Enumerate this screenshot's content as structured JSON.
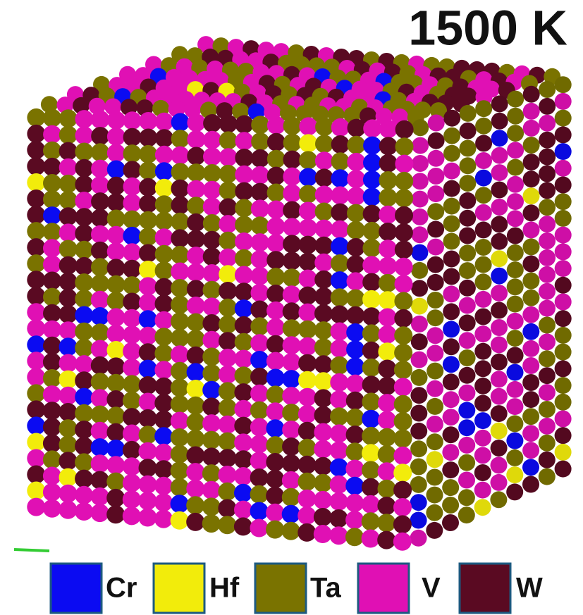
{
  "title": "1500 K",
  "legend": [
    {
      "label": "Cr",
      "color": "#0b0bf2"
    },
    {
      "label": "Hf",
      "color": "#f2ec0b"
    },
    {
      "label": "Ta",
      "color": "#7a7300"
    },
    {
      "label": "V",
      "color": "#e010b4"
    },
    {
      "label": "W",
      "color": "#5a0a22"
    }
  ]
}
